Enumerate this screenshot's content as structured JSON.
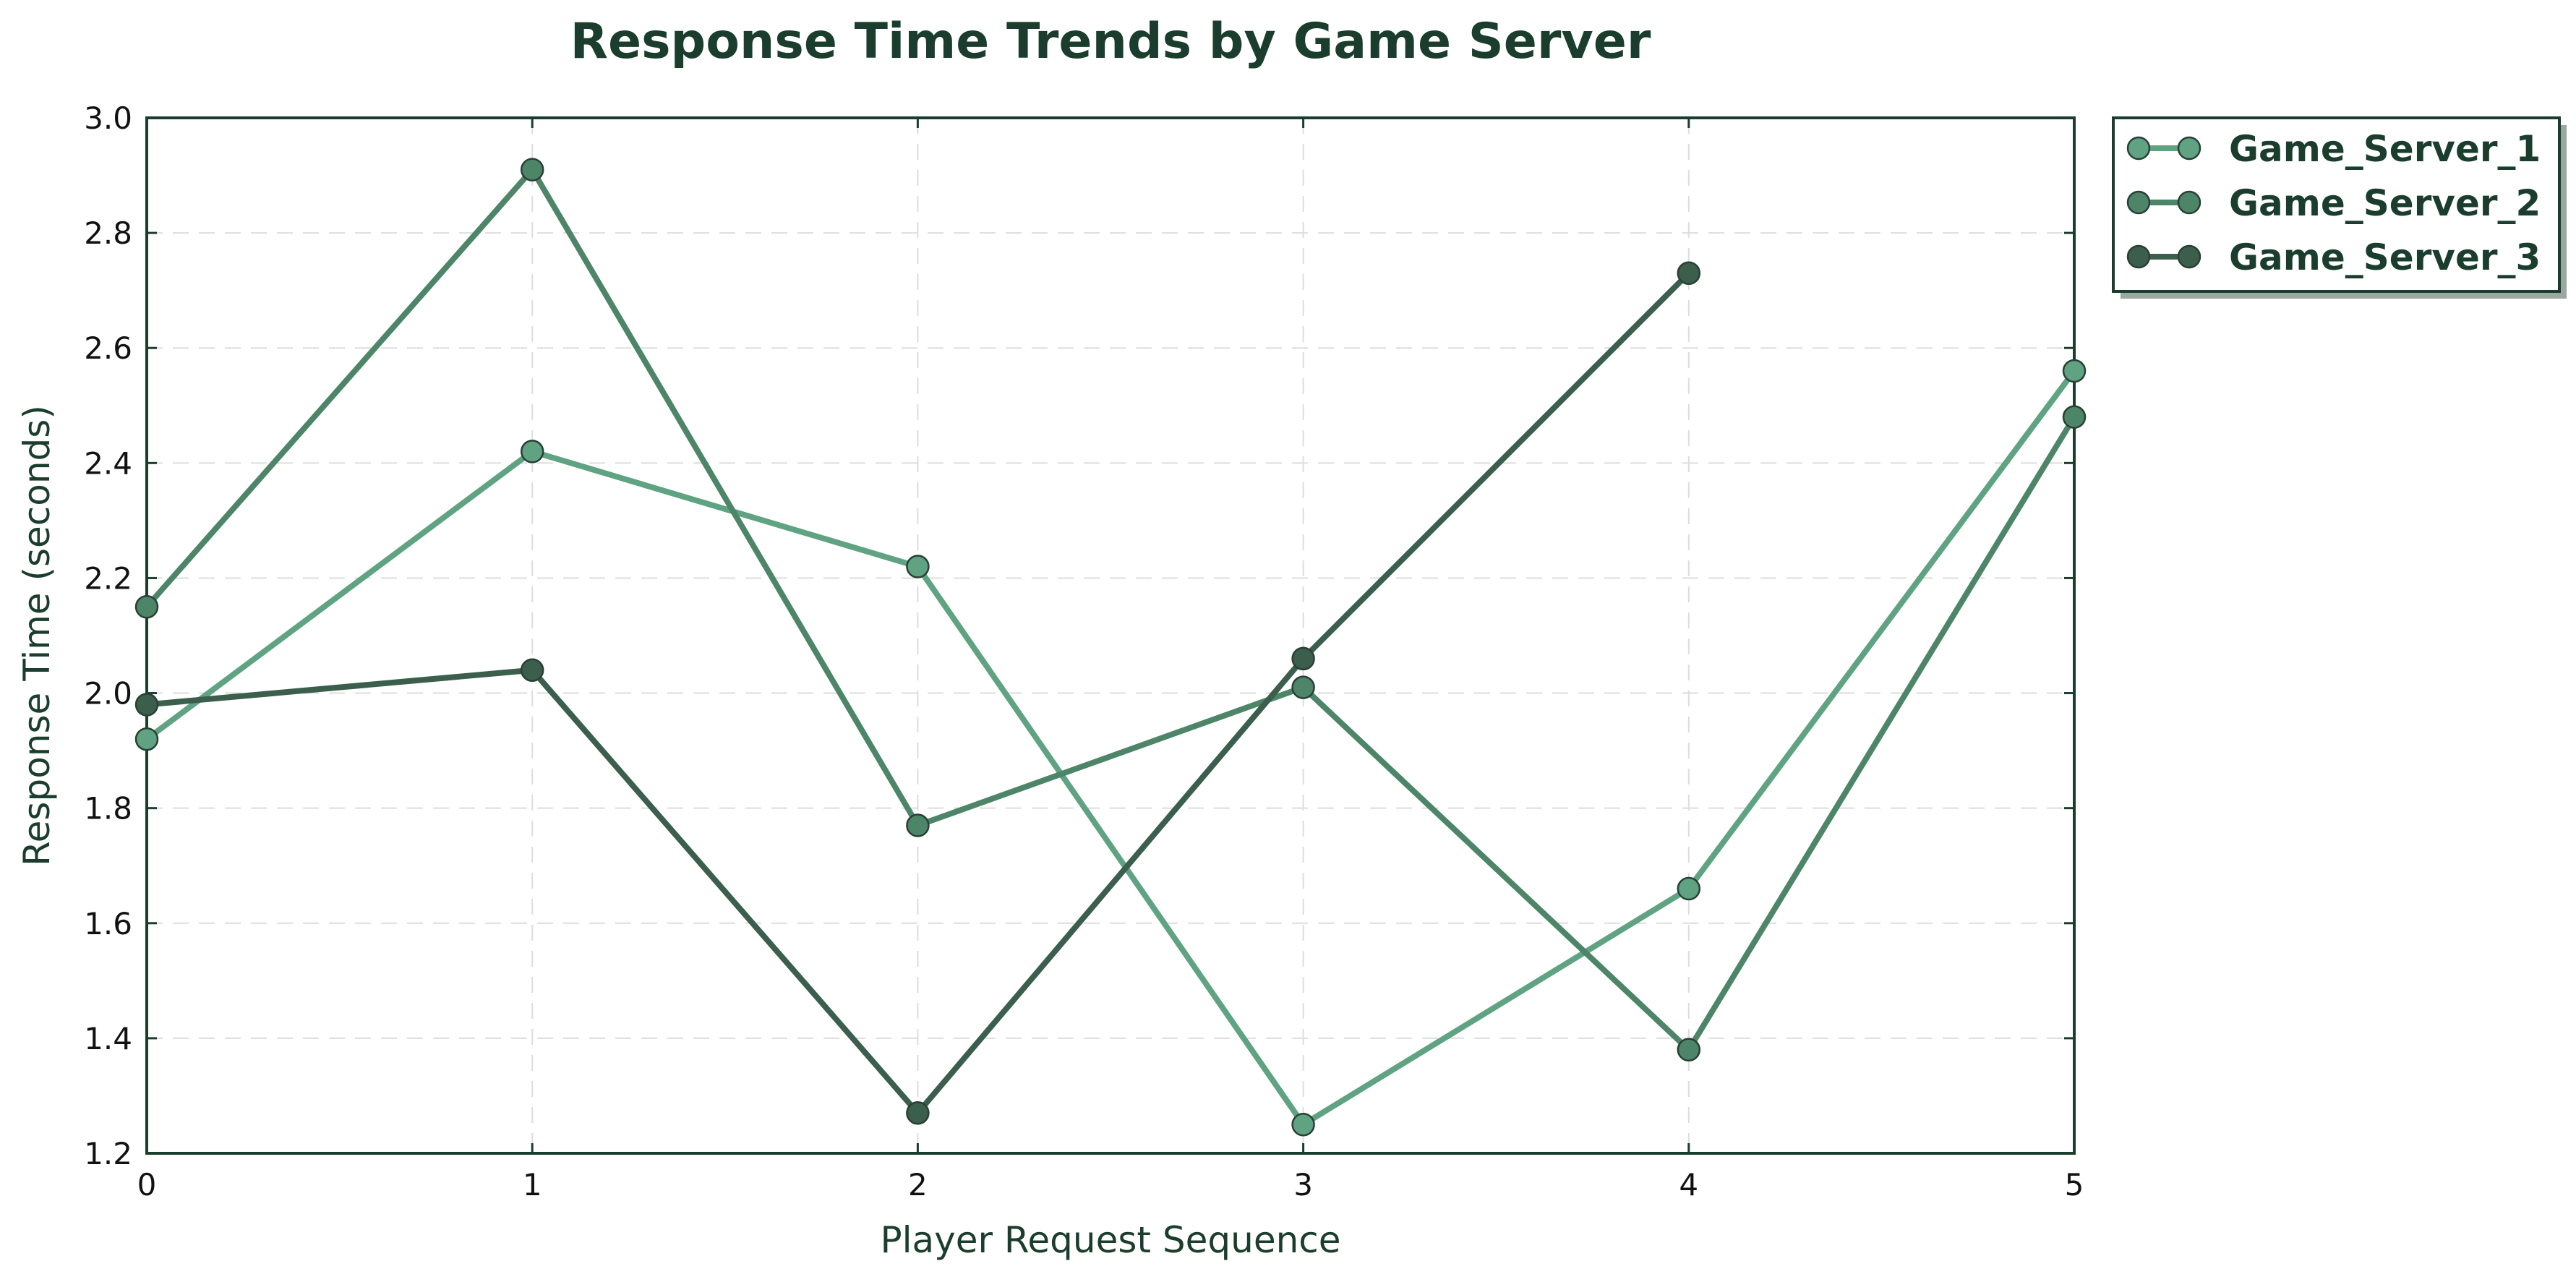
{
  "chart_data": {
    "type": "line",
    "title": "Response Time Trends by Game Server",
    "xlabel": "Player Request Sequence",
    "ylabel": "Response Time (seconds)",
    "xlim": [
      0,
      5
    ],
    "ylim": [
      1.2,
      3.0
    ],
    "x_ticks": [
      0,
      1,
      2,
      3,
      4,
      5
    ],
    "y_ticks": [
      1.2,
      1.4,
      1.6,
      1.8,
      2.0,
      2.2,
      2.4,
      2.6,
      2.8,
      3.0
    ],
    "x_tick_labels": [
      "0",
      "1",
      "2",
      "3",
      "4",
      "5"
    ],
    "y_tick_labels": [
      "1.2",
      "1.4",
      "1.6",
      "1.8",
      "2.0",
      "2.2",
      "2.4",
      "2.6",
      "2.8",
      "3.0"
    ],
    "grid": true,
    "legend_position": "outside top-right",
    "series": [
      {
        "name": "Game_Server_1",
        "color": "#5fa383",
        "x": [
          0,
          1,
          2,
          3,
          4,
          5
        ],
        "values": [
          1.92,
          2.42,
          2.22,
          1.25,
          1.66,
          2.56
        ]
      },
      {
        "name": "Game_Server_2",
        "color": "#4d8569",
        "x": [
          0,
          1,
          2,
          3,
          4,
          5
        ],
        "values": [
          2.15,
          2.91,
          1.77,
          2.01,
          1.38,
          2.48
        ]
      },
      {
        "name": "Game_Server_3",
        "color": "#3b5e4d",
        "x": [
          0,
          1,
          2,
          3,
          4
        ],
        "values": [
          1.98,
          2.04,
          1.27,
          2.06,
          2.73
        ]
      }
    ]
  }
}
